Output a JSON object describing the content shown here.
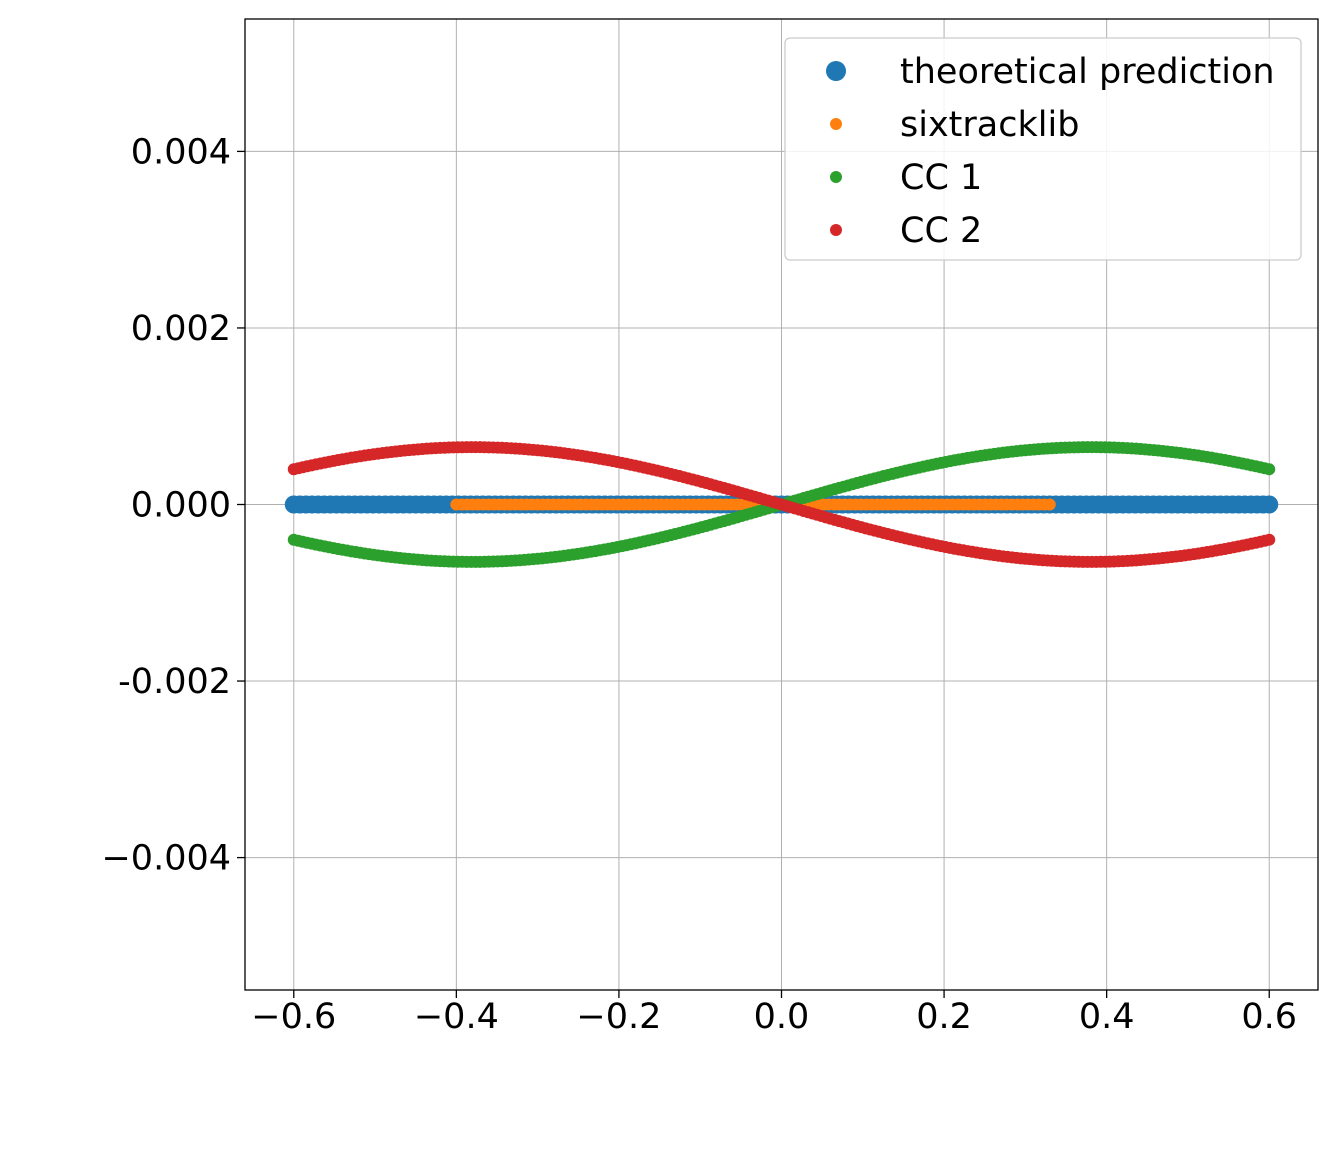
{
  "chart_data": {
    "type": "scatter",
    "title": "",
    "xlabel": "",
    "ylabel": "",
    "xlim": [
      -0.66,
      0.66
    ],
    "ylim": [
      -0.0055,
      0.0055
    ],
    "xticks": [
      -0.6,
      -0.4,
      -0.2,
      0.0,
      0.2,
      0.4,
      0.6
    ],
    "xtick_labels": [
      "−0.6",
      "−0.4",
      "−0.2",
      "0.0",
      "0.2",
      "0.4",
      "0.6"
    ],
    "yticks": [
      0.004,
      0.002,
      0.0,
      -0.002,
      -0.004
    ],
    "ytick_labels": [
      "0.004",
      "0.002",
      "0.000",
      "-0.002",
      "−0.004"
    ],
    "grid": true,
    "legend_position": "top-right",
    "series": [
      {
        "name": "theoretical prediction",
        "color": "#1f77b4",
        "marker_size": "large",
        "x_range": [
          -0.6,
          0.6
        ],
        "y_value": 0.0
      },
      {
        "name": "sixtracklib",
        "color": "#ff7f0e",
        "marker_size": "medium",
        "x_range": [
          -0.4,
          0.33
        ],
        "y_value": 0.0
      },
      {
        "name": "CC 1",
        "color": "#2ca02c",
        "marker_size": "medium",
        "x_range": [
          -0.6,
          0.6
        ],
        "amplitude": 0.00065,
        "zero_crossings": [
          -0.38,
          0.0,
          0.38
        ]
      },
      {
        "name": "CC 2",
        "color": "#d62728",
        "marker_size": "medium",
        "x_range": [
          -0.6,
          0.6
        ],
        "amplitude": -0.00065,
        "zero_crossings": [
          -0.38,
          0.0,
          0.38
        ]
      }
    ]
  }
}
